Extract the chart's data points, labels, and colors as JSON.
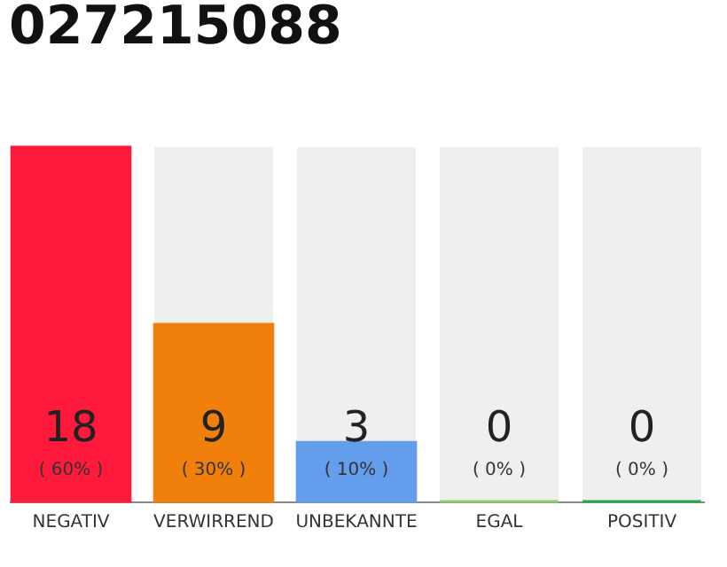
{
  "chart_data": {
    "type": "bar",
    "title": "027215088",
    "categories": [
      "NEGATIV",
      "VERWIRREND",
      "UNBEKANNTE",
      "EGAL",
      "POSITIV"
    ],
    "values": [
      60,
      30,
      10,
      0,
      0
    ],
    "colors": [
      "#ff1a3c",
      "#f07f0b",
      "#659ded",
      "#8bcf6a",
      "#2aa84a"
    ],
    "value_labels": [
      "( 60% )",
      "( 30% )",
      "( 10% )",
      "( 0% )",
      "( 0% )"
    ],
    "annotations": [
      "18",
      "9",
      "3",
      "0",
      "0"
    ],
    "tick_labels": "x"
  }
}
